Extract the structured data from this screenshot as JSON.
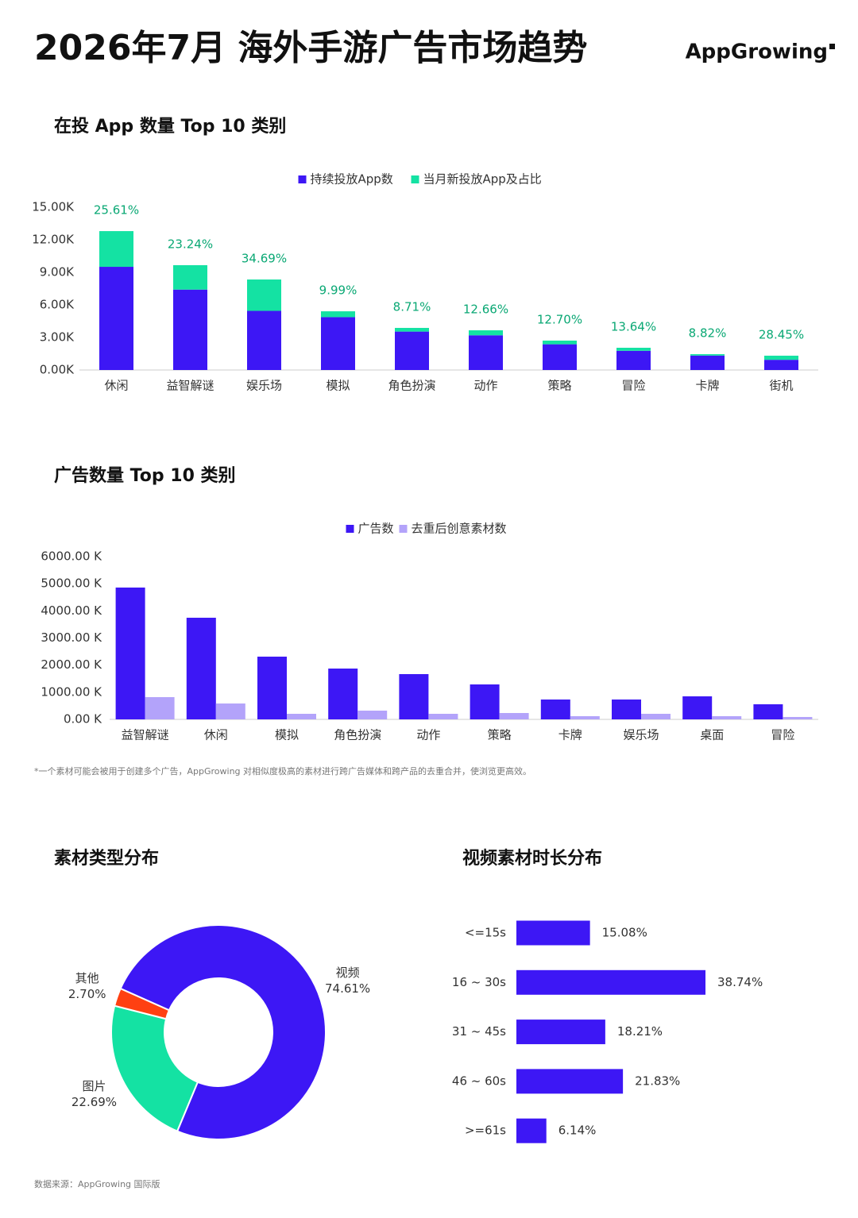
{
  "title": "2026年7月 海外手游广告市场趋势",
  "logo": "AppGrowing",
  "chart_data": [
    {
      "type": "stacked_bar",
      "title": "在投 App 数量 Top 10 类别",
      "categories": [
        "休闲",
        "益智解谜",
        "娱乐场",
        "模拟",
        "角色扮演",
        "动作",
        "策略",
        "冒险",
        "卡牌",
        "街机"
      ],
      "series": [
        {
          "name": "持续投放App数",
          "color": "#3d17f5",
          "values": [
            9510,
            7410,
            5450,
            4870,
            3540,
            3200,
            2370,
            1770,
            1330,
            940
          ]
        },
        {
          "name": "当月新投放App及占比",
          "color": "#14e2a3",
          "values": [
            3290,
            2250,
            2890,
            540,
            340,
            460,
            340,
            280,
            130,
            380
          ]
        }
      ],
      "share_labels": [
        "25.61%",
        "23.24%",
        "34.69%",
        "9.99%",
        "8.71%",
        "12.66%",
        "12.70%",
        "13.64%",
        "8.82%",
        "28.45%"
      ],
      "share_color": "#0aa874",
      "ylim": [
        0,
        15000
      ],
      "yticks": [
        {
          "value": 0,
          "label": "0.00K"
        },
        {
          "value": 3000,
          "label": "3.00K"
        },
        {
          "value": 6000,
          "label": "6.00K"
        },
        {
          "value": 9000,
          "label": "9.00K"
        },
        {
          "value": 12000,
          "label": "12.00K"
        },
        {
          "value": 15000,
          "label": "15.00K"
        }
      ]
    },
    {
      "type": "grouped_bar",
      "title": "广告数量 Top 10 类别",
      "categories": [
        "益智解谜",
        "休闲",
        "模拟",
        "角色扮演",
        "动作",
        "策略",
        "卡牌",
        "娱乐场",
        "桌面",
        "冒险"
      ],
      "series": [
        {
          "name": "广告数",
          "color": "#3d17f5",
          "values": [
            4859,
            3746,
            2312,
            1873,
            1668,
            1288,
            732,
            732,
            849,
            556
          ]
        },
        {
          "name": "去重后创意素材数",
          "color": "#b3a3fa",
          "values": [
            820,
            585,
            205,
            322,
            205,
            234,
            117,
            205,
            117,
            88
          ]
        }
      ],
      "ylim": [
        0,
        6000
      ],
      "yticks": [
        {
          "value": 0,
          "label": "0.00 K"
        },
        {
          "value": 1000,
          "label": "1000.00 K"
        },
        {
          "value": 2000,
          "label": "2000.00 K"
        },
        {
          "value": 3000,
          "label": "3000.00 K"
        },
        {
          "value": 4000,
          "label": "4000.00 K"
        },
        {
          "value": 5000,
          "label": "5000.00 K"
        },
        {
          "value": 6000,
          "label": "6000.00 K"
        }
      ]
    },
    {
      "type": "donut",
      "title": "素材类型分布",
      "categories": [
        "视频",
        "图片",
        "其他"
      ],
      "values": [
        74.61,
        22.69,
        2.7
      ],
      "value_labels": [
        "74.61%",
        "22.69%",
        "2.70%"
      ],
      "colors": [
        "#3d17f5",
        "#14e2a3",
        "#ff4012"
      ]
    },
    {
      "type": "hbar",
      "title": "视频素材时长分布",
      "categories": [
        "<=15s",
        "16 ~ 30s",
        "31 ~ 45s",
        "46 ~ 60s",
        ">=61s"
      ],
      "values": [
        15.08,
        38.74,
        18.21,
        21.83,
        6.14
      ],
      "value_labels": [
        "15.08%",
        "38.74%",
        "18.21%",
        "21.83%",
        "6.14%"
      ],
      "color": "#3d17f5"
    }
  ],
  "footnote": "*一个素材可能会被用于创建多个广告，AppGrowing 对相似度极高的素材进行跨广告媒体和跨产品的去重合并，使浏览更高效。",
  "source": "数据来源：AppGrowing 国际版"
}
